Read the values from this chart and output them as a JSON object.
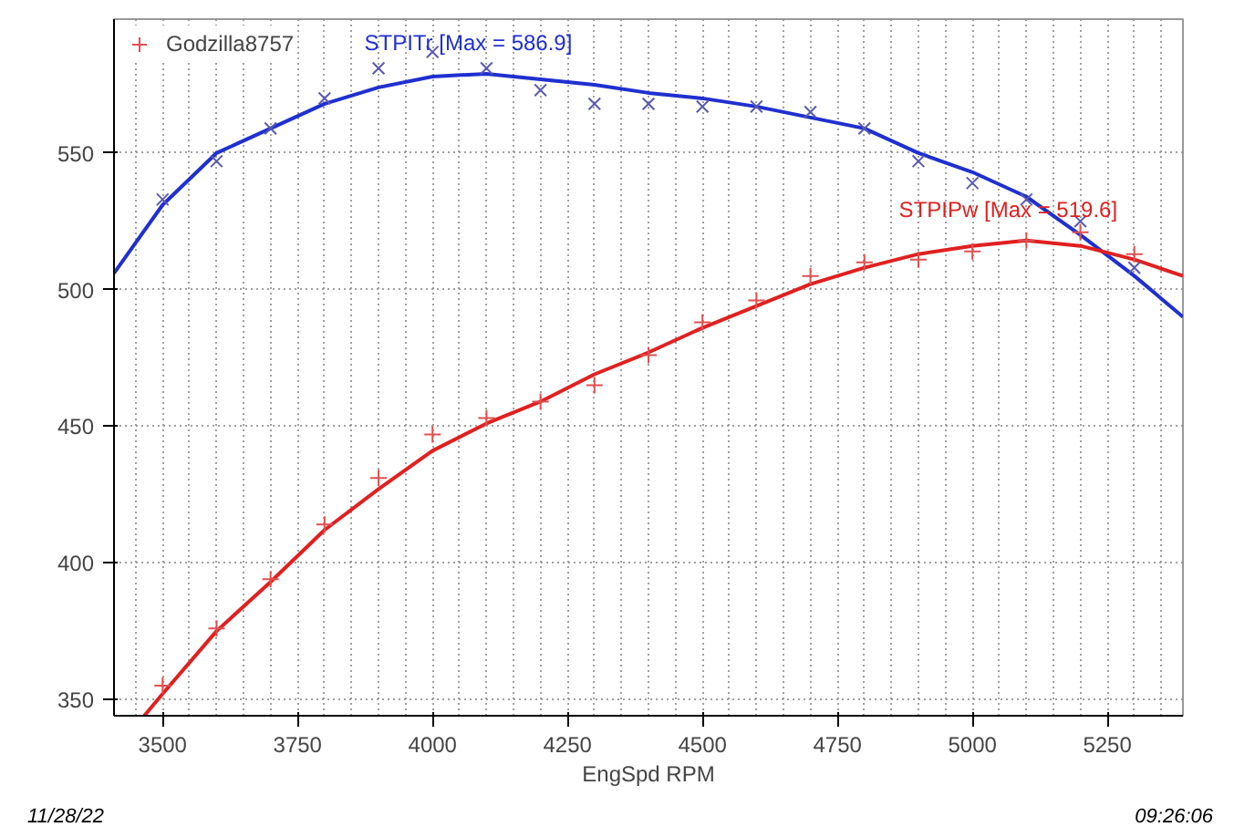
{
  "chart_data": {
    "type": "line",
    "xlabel": "EngSpd RPM",
    "xlim": [
      3410,
      5390
    ],
    "ylim": [
      344,
      599
    ],
    "xticks": [
      {
        "value": 3450,
        "label": null
      },
      3500,
      {
        "value": 3550,
        "label": null
      },
      {
        "value": 3600,
        "label": null
      },
      {
        "value": 3650,
        "label": null
      },
      {
        "value": 3700,
        "label": null
      },
      3750,
      {
        "value": 3800,
        "label": null
      },
      {
        "value": 3850,
        "label": null
      },
      {
        "value": 3900,
        "label": null
      },
      {
        "value": 3950,
        "label": null
      },
      4000,
      {
        "value": 4050,
        "label": null
      },
      {
        "value": 4100,
        "label": null
      },
      {
        "value": 4150,
        "label": null
      },
      {
        "value": 4200,
        "label": null
      },
      4250,
      {
        "value": 4300,
        "label": null
      },
      {
        "value": 4350,
        "label": null
      },
      {
        "value": 4400,
        "label": null
      },
      {
        "value": 4450,
        "label": null
      },
      4500,
      {
        "value": 4550,
        "label": null
      },
      {
        "value": 4600,
        "label": null
      },
      {
        "value": 4650,
        "label": null
      },
      {
        "value": 4700,
        "label": null
      },
      4750,
      {
        "value": 4800,
        "label": null
      },
      {
        "value": 4850,
        "label": null
      },
      {
        "value": 4900,
        "label": null
      },
      {
        "value": 4950,
        "label": null
      },
      5000,
      {
        "value": 5050,
        "label": null
      },
      {
        "value": 5100,
        "label": null
      },
      {
        "value": 5150,
        "label": null
      },
      {
        "value": 5200,
        "label": null
      },
      5250,
      {
        "value": 5300,
        "label": null
      },
      {
        "value": 5350,
        "label": null
      }
    ],
    "yticks": [
      350,
      400,
      450,
      500,
      550
    ],
    "grid": true,
    "legend": "top",
    "series": [
      {
        "name": "STPITr [Max = 586.9]",
        "color": "#1f2fd0",
        "x": [
          3410,
          3500,
          3600,
          3700,
          3800,
          3900,
          4000,
          4100,
          4200,
          4300,
          4400,
          4500,
          4600,
          4700,
          4800,
          4900,
          5000,
          5100,
          5200,
          5300,
          5390
        ],
        "values": [
          506,
          531,
          550,
          559,
          568,
          574,
          578,
          579,
          577,
          575,
          572,
          570,
          567,
          563,
          559,
          550,
          543,
          534,
          520,
          505,
          490
        ]
      },
      {
        "name": "STPIPw [Max = 519.6]",
        "color": "#e02020",
        "x": [
          3466,
          3500,
          3600,
          3700,
          3800,
          3900,
          4000,
          4100,
          4200,
          4300,
          4400,
          4500,
          4600,
          4700,
          4800,
          4900,
          5000,
          5100,
          5200,
          5300,
          5390
        ],
        "values": [
          344,
          352,
          375,
          393,
          412,
          427,
          441,
          451,
          459,
          469,
          477,
          486,
          494,
          502,
          508,
          513,
          516,
          518,
          516,
          511,
          505
        ]
      },
      {
        "type": "scatter",
        "marker": "x",
        "color": "#5a5ab0",
        "x": [
          3500,
          3600,
          3700,
          3800,
          3900,
          4000,
          4100,
          4200,
          4300,
          4400,
          4500,
          4600,
          4700,
          4800,
          4900,
          5000,
          5100,
          5200,
          5300
        ],
        "values": [
          533,
          547,
          559,
          570,
          581,
          587,
          581,
          573,
          568,
          568,
          567,
          567,
          565,
          559,
          547,
          539,
          533,
          525,
          508
        ]
      },
      {
        "name": "Godzilla8757",
        "type": "scatter",
        "marker": "cross",
        "color": "#e05050",
        "x": [
          3500,
          3600,
          3700,
          3800,
          3900,
          4000,
          4100,
          4200,
          4300,
          4400,
          4500,
          4600,
          4700,
          4800,
          4900,
          5000,
          5100,
          5200,
          5300
        ],
        "values": [
          355,
          376,
          394,
          414,
          431,
          447,
          453,
          459,
          465,
          476,
          488,
          496,
          505,
          510,
          511,
          514,
          518,
          521,
          513
        ]
      }
    ],
    "annotations": [
      "11/28/22",
      "09:26:06"
    ]
  }
}
